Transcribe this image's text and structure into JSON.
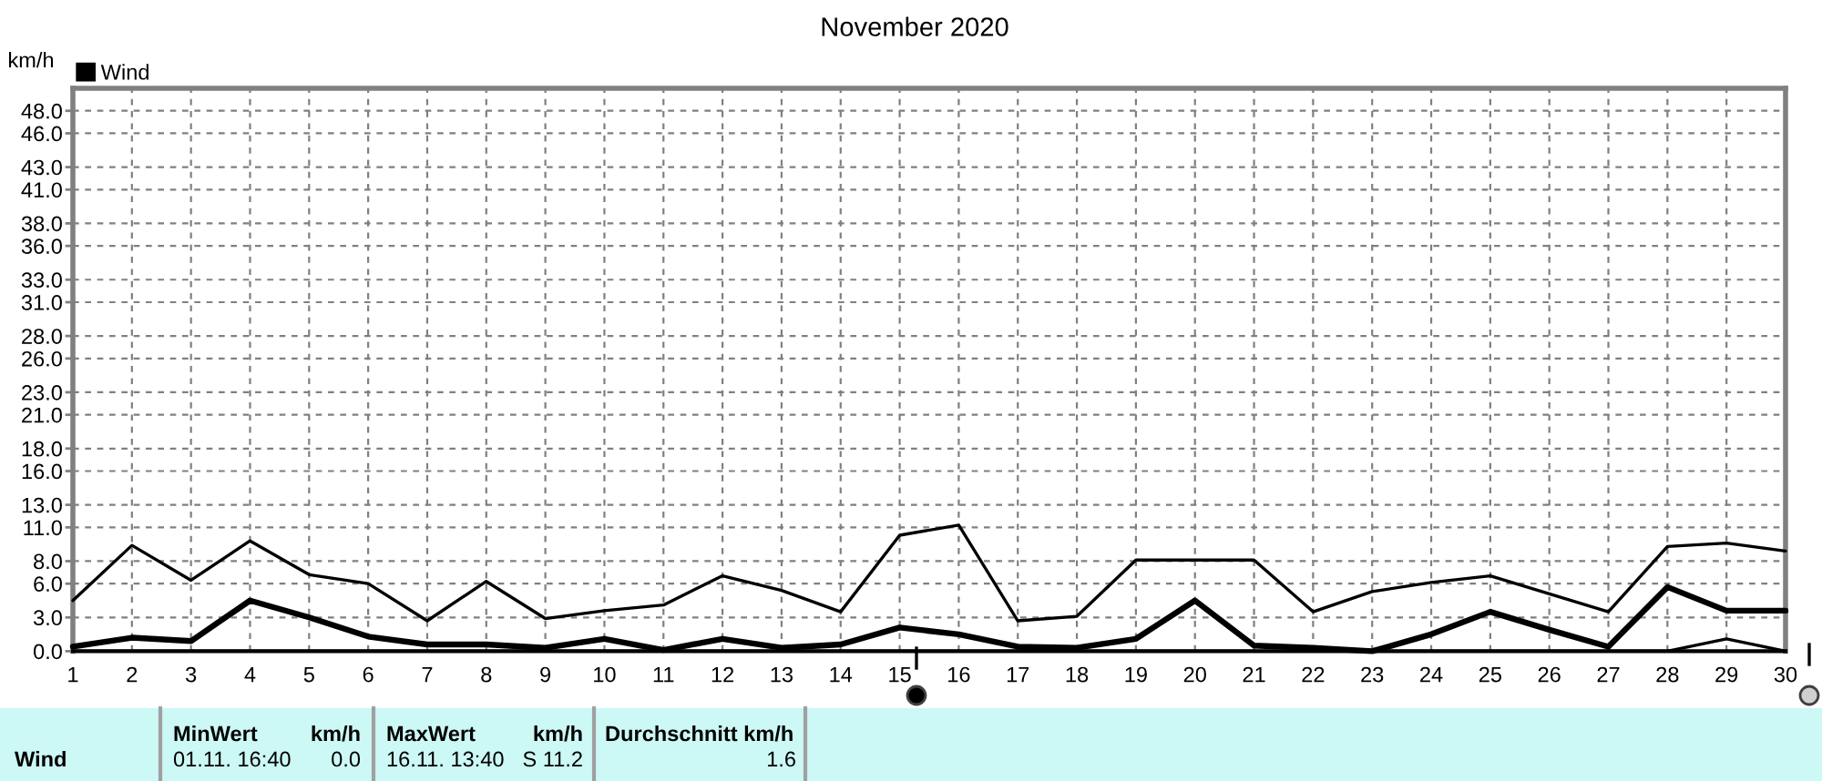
{
  "chart_data": {
    "type": "line",
    "title": "November 2020",
    "ylabel": "km/h",
    "x": [
      1,
      2,
      3,
      4,
      5,
      6,
      7,
      8,
      9,
      10,
      11,
      12,
      13,
      14,
      15,
      16,
      17,
      18,
      19,
      20,
      21,
      22,
      23,
      24,
      25,
      26,
      27,
      28,
      29,
      30
    ],
    "xlim": [
      1,
      30
    ],
    "xticks": [
      1,
      2,
      3,
      4,
      5,
      6,
      7,
      8,
      9,
      10,
      11,
      12,
      13,
      14,
      15,
      16,
      17,
      18,
      19,
      20,
      21,
      22,
      23,
      24,
      25,
      26,
      27,
      28,
      29,
      30
    ],
    "ylim": [
      0,
      50
    ],
    "yticks": [
      {
        "value": 0,
        "label": "0.0"
      },
      {
        "value": 3,
        "label": "3.0"
      },
      {
        "value": 6,
        "label": "6.0"
      },
      {
        "value": 8,
        "label": "8.0"
      },
      {
        "value": 11,
        "label": "11.0"
      },
      {
        "value": 13,
        "label": "13.0"
      },
      {
        "value": 16,
        "label": "16.0"
      },
      {
        "value": 18,
        "label": "18.0"
      },
      {
        "value": 21,
        "label": "21.0"
      },
      {
        "value": 23,
        "label": "23.0"
      },
      {
        "value": 26,
        "label": "26.0"
      },
      {
        "value": 28,
        "label": "28.0"
      },
      {
        "value": 31,
        "label": "31.0"
      },
      {
        "value": 33,
        "label": "33.0"
      },
      {
        "value": 36,
        "label": "36.0"
      },
      {
        "value": 38,
        "label": "38.0"
      },
      {
        "value": 41,
        "label": "41.0"
      },
      {
        "value": 43,
        "label": "43.0"
      },
      {
        "value": 46,
        "label": "46.0"
      },
      {
        "value": 48,
        "label": "48.0"
      }
    ],
    "grid": true,
    "legend": "top left",
    "series": [
      {
        "color": "#000000",
        "values": [
          4.5,
          9.4,
          6.3,
          9.8,
          6.8,
          6.0,
          2.7,
          6.2,
          2.9,
          3.6,
          4.1,
          6.7,
          5.4,
          3.5,
          10.3,
          11.2,
          2.7,
          3.1,
          8.1,
          8.1,
          8.1,
          3.5,
          5.3,
          6.1,
          6.7,
          5.1,
          3.5,
          9.3,
          9.6,
          8.9
        ]
      },
      {
        "name": "Wind",
        "color": "#000000",
        "values": [
          0.4,
          1.2,
          0.9,
          4.5,
          3.0,
          1.3,
          0.6,
          0.6,
          0.3,
          1.1,
          0.1,
          1.1,
          0.3,
          0.6,
          2.1,
          1.5,
          0.4,
          0.3,
          1.1,
          4.5,
          0.5,
          0.3,
          0.0,
          1.5,
          3.5,
          1.9,
          0.4,
          5.7,
          3.6,
          3.6
        ]
      },
      {
        "color": "#000000",
        "values": [
          0,
          0,
          0,
          0,
          0,
          0,
          0,
          0,
          0,
          0,
          0,
          0,
          0,
          0,
          0,
          0,
          0,
          0,
          0,
          0,
          0,
          0,
          0,
          0,
          0,
          0,
          0,
          0,
          1.1,
          0
        ]
      }
    ],
    "annotations": [
      "Wind",
      "MinWert",
      "km/h",
      "01.11. 16:40",
      "0.0",
      "MaxWert",
      "km/h",
      "16.11. 13:40",
      "S 11.2",
      "Durchschnitt km/h",
      "1.6"
    ]
  }
}
